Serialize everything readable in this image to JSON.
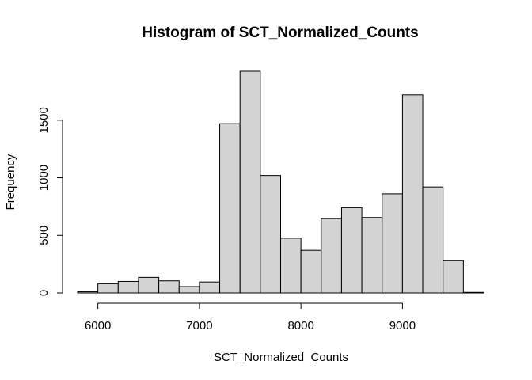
{
  "chart_data": {
    "type": "bar",
    "title": "Histogram of SCT_Normalized_Counts",
    "xlabel": "SCT_Normalized_Counts",
    "ylabel": "Frequency",
    "bar_color": "#d3d3d3",
    "edge_color": "#000000",
    "bin_edges": [
      5800,
      6000,
      6200,
      6400,
      6600,
      6800,
      7000,
      7200,
      7400,
      7600,
      7800,
      8000,
      8200,
      8400,
      8600,
      8800,
      9000,
      9200,
      9400,
      9600,
      9800
    ],
    "values": [
      10,
      80,
      100,
      135,
      105,
      55,
      95,
      1470,
      1925,
      1020,
      475,
      370,
      645,
      740,
      655,
      860,
      1720,
      920,
      280,
      5
    ],
    "xlim": [
      5800,
      9800
    ],
    "ylim": [
      0,
      1925
    ],
    "xticks": [
      6000,
      7000,
      8000,
      9000
    ],
    "yticks": [
      0,
      500,
      1000,
      1500
    ],
    "xtick_labels": [
      "6000",
      "7000",
      "8000",
      "9000"
    ],
    "ytick_labels": [
      "0",
      "500",
      "1000",
      "1500"
    ],
    "grid": false,
    "legend": "none"
  }
}
